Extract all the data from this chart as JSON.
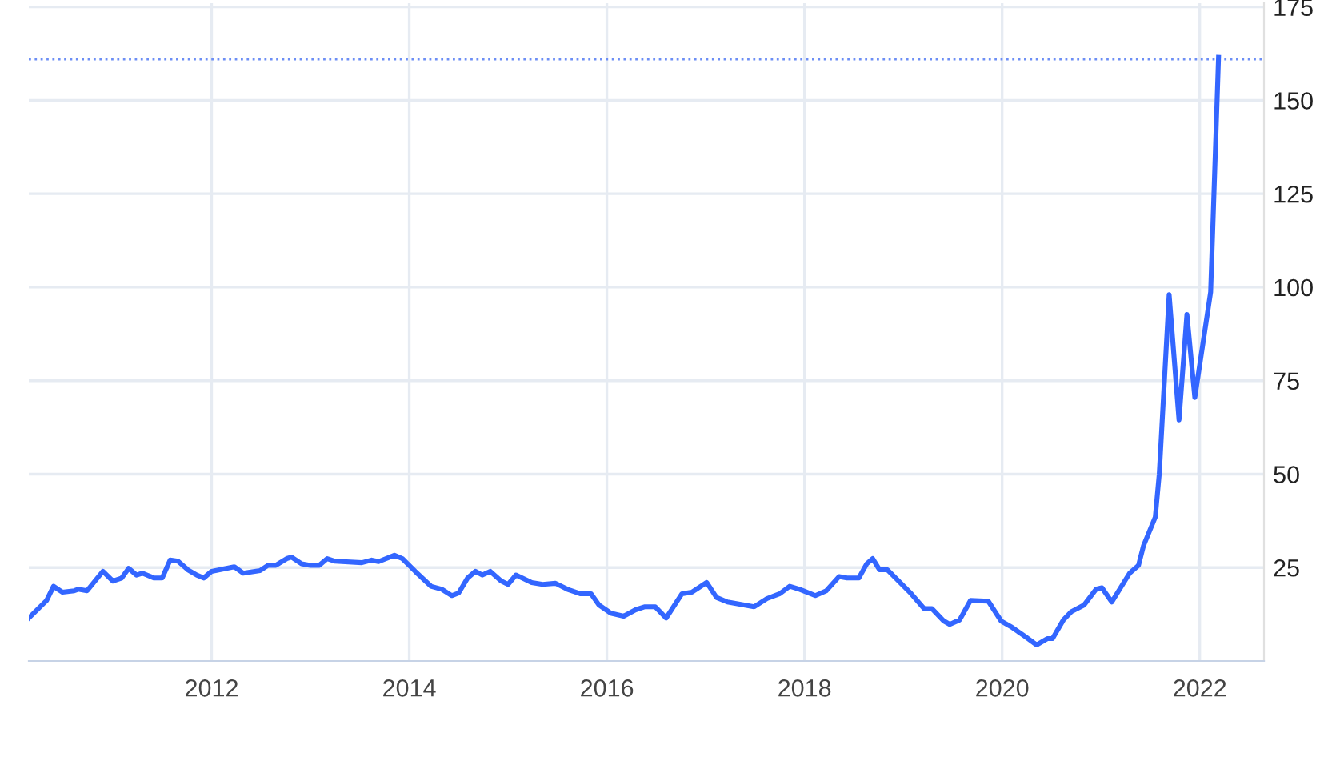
{
  "chart_data": {
    "type": "line",
    "xlim": [
      2010.15,
      2022.65
    ],
    "xticks": [
      2012,
      2014,
      2016,
      2018,
      2020,
      2022
    ],
    "ylim": [
      0,
      176
    ],
    "yticks": [
      25,
      50,
      75,
      100,
      125,
      150,
      175
    ],
    "grid": true,
    "marker": "none",
    "line_style": "solid",
    "ref_lines": [
      {
        "axis": "y",
        "value": 161,
        "color": "#6c8ef5",
        "line_style": "dotted"
      }
    ],
    "series": [
      {
        "color": "#3366ff",
        "x": [
          2010.15,
          2010.33,
          2010.4,
          2010.49,
          2010.61,
          2010.65,
          2010.74,
          2010.9,
          2011.0,
          2011.09,
          2011.16,
          2011.24,
          2011.3,
          2011.42,
          2011.5,
          2011.58,
          2011.66,
          2011.76,
          2011.85,
          2011.92,
          2012.0,
          2012.23,
          2012.32,
          2012.49,
          2012.57,
          2012.65,
          2012.76,
          2012.81,
          2012.91,
          2013.0,
          2013.09,
          2013.17,
          2013.25,
          2013.52,
          2013.62,
          2013.69,
          2013.85,
          2013.93,
          2014.06,
          2014.22,
          2014.33,
          2014.43,
          2014.5,
          2014.59,
          2014.67,
          2014.74,
          2014.82,
          2014.93,
          2015.0,
          2015.08,
          2015.24,
          2015.35,
          2015.48,
          2015.6,
          2015.73,
          2015.84,
          2015.92,
          2016.04,
          2016.17,
          2016.29,
          2016.38,
          2016.49,
          2016.6,
          2016.76,
          2016.86,
          2017.01,
          2017.11,
          2017.22,
          2017.49,
          2017.62,
          2017.75,
          2017.85,
          2017.95,
          2018.11,
          2018.22,
          2018.35,
          2018.43,
          2018.55,
          2018.63,
          2018.69,
          2018.76,
          2018.84,
          2019.08,
          2019.21,
          2019.29,
          2019.41,
          2019.47,
          2019.57,
          2019.68,
          2019.86,
          2019.99,
          2020.1,
          2020.22,
          2020.35,
          2020.46,
          2020.51,
          2020.62,
          2020.7,
          2020.83,
          2020.95,
          2021.01,
          2021.11,
          2021.29,
          2021.38,
          2021.43,
          2021.55,
          2021.59,
          2021.69,
          2021.79,
          2021.87,
          2021.95,
          2022.11,
          2022.19
        ],
        "values": [
          11.5,
          16.2,
          20,
          18.4,
          18.8,
          19.2,
          18.8,
          24,
          21.4,
          22.2,
          24.8,
          23,
          23.5,
          22.2,
          22.2,
          27,
          26.7,
          24.4,
          23,
          22.2,
          24,
          25.2,
          23.5,
          24.2,
          25.6,
          25.6,
          27.4,
          27.8,
          26,
          25.6,
          25.6,
          27.4,
          26.7,
          26.3,
          27,
          26.6,
          28.3,
          27.4,
          24,
          20,
          19.2,
          17.5,
          18.2,
          22.2,
          24,
          23,
          24,
          21.4,
          20.5,
          23,
          21,
          20.5,
          20.8,
          19.2,
          18,
          18,
          15,
          12.8,
          12,
          13.7,
          14.5,
          14.5,
          11.5,
          18,
          18.4,
          21,
          17,
          15.8,
          14.5,
          16.7,
          18,
          20,
          19.2,
          17.5,
          18.8,
          22.6,
          22.2,
          22.2,
          26,
          27.4,
          24.4,
          24.4,
          18,
          14,
          14,
          10.7,
          9.8,
          11,
          16.2,
          16,
          10.7,
          9,
          6.8,
          4.3,
          6,
          6,
          11,
          13.2,
          15,
          19.2,
          19.6,
          15.8,
          23.5,
          25.6,
          30.8,
          38.5,
          50,
          98,
          64.5,
          92.7,
          70.5,
          98.7,
          161.5
        ]
      }
    ]
  }
}
